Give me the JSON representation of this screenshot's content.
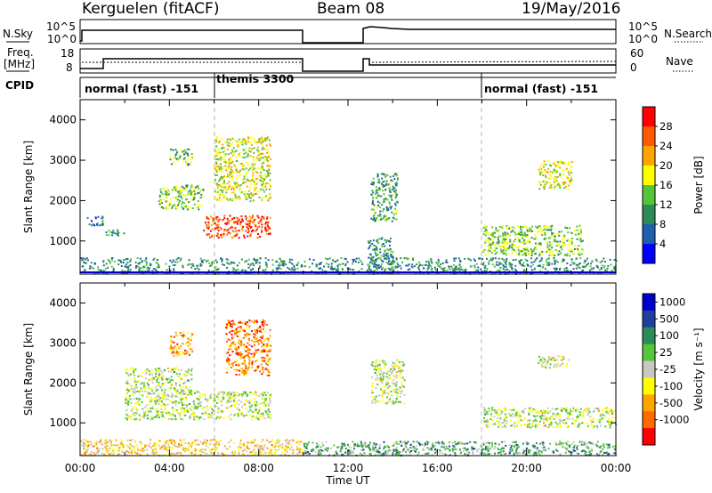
{
  "header": {
    "station": "Kerguelen (fitACF)",
    "beam": "Beam 08",
    "date": "19/May/2016"
  },
  "panels": {
    "nsky_label": "N.Sky",
    "nsearch_label": "N.Search",
    "log_ticks": [
      "10^5",
      "10^0"
    ],
    "freq_label_line1": "Freq.",
    "freq_label_line2": "[MHz]",
    "freq_ticks": [
      "18",
      "8"
    ],
    "nave_label": "Nave",
    "nave_ticks": [
      "60",
      "0"
    ],
    "cpid_label": "CPID",
    "modes": [
      {
        "name": "normal (fast) -151",
        "start": 0
      },
      {
        "name": "themis 3300",
        "start": 6
      },
      {
        "name": "normal (fast) -151",
        "start": 18
      }
    ]
  },
  "colors": {
    "power_scale": [
      "#0000ff",
      "#1f5faf",
      "#2e8b57",
      "#55c63a",
      "#ffff00",
      "#ffa500",
      "#ff5a00",
      "#ff0000"
    ],
    "velocity_scale": [
      "#0000cc",
      "#1e3fa0",
      "#2e8b57",
      "#55c63a",
      "#c8c8c0",
      "#ffff00",
      "#ffa500",
      "#ff6a00",
      "#ff0000"
    ]
  },
  "chart_data": [
    {
      "type": "heatmap",
      "panel": "power",
      "ylabel": "Slant Range [km]",
      "yticks": [
        "1000",
        "2000",
        "3000",
        "4000"
      ],
      "ylim": [
        180,
        4500
      ],
      "xlim": [
        0,
        24
      ],
      "colorbar_label": "Power [dB]",
      "colorbar_ticks": [
        "4",
        "8",
        "12",
        "16",
        "20",
        "24",
        "28"
      ],
      "regions": [
        {
          "t0": 0.0,
          "t1": 24.0,
          "r0": 200,
          "r1": 600,
          "level": 0.3
        },
        {
          "t0": 0.3,
          "t1": 1.0,
          "r0": 1400,
          "r1": 1650,
          "level": 0.25
        },
        {
          "t0": 1.0,
          "t1": 2.0,
          "r0": 1150,
          "r1": 1300,
          "level": 0.3
        },
        {
          "t0": 3.5,
          "t1": 5.5,
          "r0": 1800,
          "r1": 2400,
          "level": 0.45
        },
        {
          "t0": 5.5,
          "t1": 8.5,
          "r0": 1100,
          "r1": 1650,
          "level": 0.85
        },
        {
          "t0": 4.0,
          "t1": 5.0,
          "r0": 2900,
          "r1": 3300,
          "level": 0.4
        },
        {
          "t0": 6.0,
          "t1": 8.5,
          "r0": 2000,
          "r1": 3600,
          "level": 0.55
        },
        {
          "t0": 13.0,
          "t1": 14.2,
          "r0": 1500,
          "r1": 2700,
          "level": 0.35
        },
        {
          "t0": 12.8,
          "t1": 14.0,
          "r0": 200,
          "r1": 1100,
          "level": 0.3
        },
        {
          "t0": 18.0,
          "t1": 22.5,
          "r0": 650,
          "r1": 1400,
          "level": 0.45
        },
        {
          "t0": 20.5,
          "t1": 22.0,
          "r0": 2300,
          "r1": 3000,
          "level": 0.55
        }
      ]
    },
    {
      "type": "heatmap",
      "panel": "velocity",
      "xlabel": "Time UT",
      "xticks": [
        "00:00",
        "04:00",
        "08:00",
        "12:00",
        "16:00",
        "20:00",
        "00:00"
      ],
      "ylabel": "Slant Range [km]",
      "yticks": [
        "1000",
        "2000",
        "3000",
        "4000"
      ],
      "ylim": [
        180,
        4500
      ],
      "xlim": [
        0,
        24
      ],
      "colorbar_label": "Velocity [m s⁻¹]",
      "colorbar_ticks": [
        "1000",
        "500",
        "100",
        "25",
        "-25",
        "-100",
        "-500",
        "-1000"
      ],
      "regions": [
        {
          "t0": 0.0,
          "t1": 10.0,
          "r0": 200,
          "r1": 600,
          "level": 0.62
        },
        {
          "t0": 10.0,
          "t1": 24.0,
          "r0": 200,
          "r1": 550,
          "level": 0.35
        },
        {
          "t0": 2.0,
          "t1": 5.0,
          "r0": 1100,
          "r1": 2400,
          "level": 0.5
        },
        {
          "t0": 5.0,
          "t1": 8.5,
          "r0": 1100,
          "r1": 1800,
          "level": 0.5
        },
        {
          "t0": 4.0,
          "t1": 5.0,
          "r0": 2700,
          "r1": 3300,
          "level": 0.75
        },
        {
          "t0": 6.5,
          "t1": 8.5,
          "r0": 2200,
          "r1": 3600,
          "level": 0.8
        },
        {
          "t0": 13.0,
          "t1": 14.5,
          "r0": 1500,
          "r1": 2600,
          "level": 0.5
        },
        {
          "t0": 18.0,
          "t1": 24.0,
          "r0": 900,
          "r1": 1400,
          "level": 0.5
        },
        {
          "t0": 20.5,
          "t1": 22.0,
          "r0": 2400,
          "r1": 2700,
          "level": 0.55
        }
      ]
    }
  ]
}
